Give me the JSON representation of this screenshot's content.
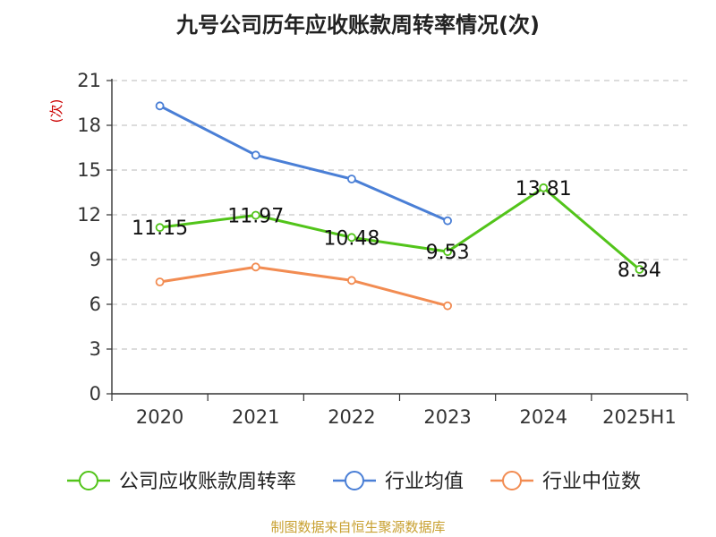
{
  "chart_data": {
    "type": "line",
    "title": "九号公司历年应收账款周转率情况(次)",
    "ylabel": "(次)",
    "xlabel": "",
    "categories": [
      "2020",
      "2021",
      "2022",
      "2023",
      "2024",
      "2025H1"
    ],
    "ylim": [
      0,
      21
    ],
    "yticks": [
      0,
      3,
      6,
      9,
      12,
      15,
      18,
      21
    ],
    "grid": true,
    "legend_position": "bottom",
    "series": [
      {
        "name": "公司应收账款周转率",
        "color": "#52c41a",
        "values": [
          11.15,
          11.97,
          10.48,
          9.53,
          13.81,
          8.34
        ],
        "labels": [
          "11.15",
          "11.97",
          "10.48",
          "9.53",
          "13.81",
          "8.34"
        ]
      },
      {
        "name": "行业均值",
        "color": "#4a7fd6",
        "values": [
          19.3,
          16.0,
          14.4,
          11.6,
          null,
          null
        ]
      },
      {
        "name": "行业中位数",
        "color": "#f28c52",
        "values": [
          7.5,
          8.5,
          7.6,
          5.9,
          null,
          null
        ]
      }
    ]
  },
  "source_text": "制图数据来自恒生聚源数据库"
}
